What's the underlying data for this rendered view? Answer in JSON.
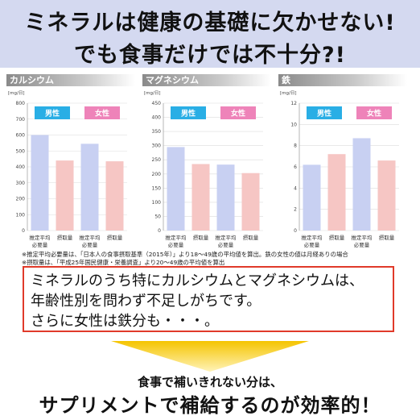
{
  "header": {
    "line1": "ミネラルは健康の基礎に欠かせない!",
    "line2": "でも食事だけでは不十分?!"
  },
  "colors": {
    "male_badge": "#29aee5",
    "female_badge": "#ee83b9",
    "bar_requirement": "#c8d0f2",
    "bar_intake": "#f6c6c4",
    "message_border": "#e03a2a",
    "arrow": "#f5c400"
  },
  "chart_data": [
    {
      "type": "bar",
      "title": "カルシウム",
      "unit": "[mg/日]",
      "ylim": [
        0,
        800
      ],
      "yticks": [
        0,
        100,
        200,
        300,
        400,
        500,
        600,
        700,
        800
      ],
      "groups": [
        "男性",
        "女性"
      ],
      "categories": [
        "推定平均必要量",
        "摂取量",
        "推定平均必要量",
        "摂取量"
      ],
      "values": [
        600,
        440,
        545,
        435
      ]
    },
    {
      "type": "bar",
      "title": "マグネシウム",
      "unit": "[mg/日]",
      "ylim": [
        0,
        450
      ],
      "yticks": [
        0,
        50,
        100,
        150,
        200,
        250,
        300,
        350,
        400,
        450
      ],
      "groups": [
        "男性",
        "女性"
      ],
      "categories": [
        "推定平均必要量",
        "摂取量",
        "推定平均必要量",
        "摂取量"
      ],
      "values": [
        295,
        235,
        233,
        203
      ]
    },
    {
      "type": "bar",
      "title": "鉄",
      "unit": "[mg/日]",
      "ylim": [
        0,
        12
      ],
      "yticks": [
        0,
        2,
        4,
        6,
        8,
        10,
        12
      ],
      "groups": [
        "男性",
        "女性"
      ],
      "categories": [
        "推定平均必要量",
        "摂取量",
        "推定平均必要量",
        "摂取量"
      ],
      "values": [
        6.2,
        7.2,
        8.7,
        6.6
      ]
    }
  ],
  "footnotes": [
    "※推定平均必要量は、「日本人の食事摂取基準（2015年）」より18～49歳の平均値を算出。鉄の女性の値は月経ありの場合",
    "※摂取量は、「平成25年国民健康・栄養調査」より20～49歳の平均値を算出"
  ],
  "message": {
    "line1": "ミネラルのうち特にカルシウムとマグネシウムは、",
    "line2": "年齢性別を問わず不足しがちです。",
    "line3": "さらに女性は鉄分も・・・。"
  },
  "bottom": {
    "sub": "食事で補いきれない分は、",
    "main": "サプリメントで補給するのが効率的！"
  }
}
